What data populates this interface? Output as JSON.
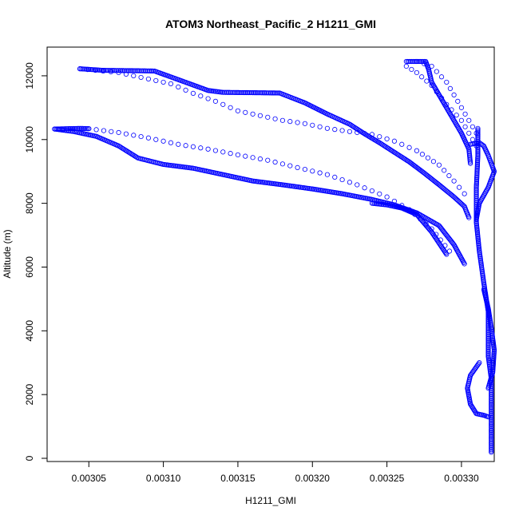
{
  "chart_data": {
    "type": "scatter",
    "title": "ATOM3 Northeast_Pacific_2 H1211_GMI",
    "xlabel": "H1211_GMI",
    "ylabel": "Altitude (m)",
    "xlim": [
      0.003022,
      0.003322
    ],
    "ylim": [
      -100,
      12900
    ],
    "x_ticks": [
      0.00305,
      0.0031,
      0.00315,
      0.0032,
      0.00325,
      0.0033
    ],
    "x_tick_labels": [
      "0.00305",
      "0.00310",
      "0.00315",
      "0.00320",
      "0.00325",
      "0.00330"
    ],
    "y_ticks": [
      0,
      2000,
      4000,
      6000,
      8000,
      10000,
      12000
    ],
    "y_tick_labels": [
      "0",
      "2000",
      "4000",
      "6000",
      "8000",
      "10000",
      "12000"
    ],
    "marker": "open-circle",
    "color": "#0000ff",
    "series": [
      {
        "name": "dense-upper-descent",
        "density": "dense",
        "points": [
          [
            0.003044,
            12220
          ],
          [
            0.00306,
            12170
          ],
          [
            0.00308,
            12160
          ],
          [
            0.003094,
            12150
          ],
          [
            0.00311,
            11880
          ],
          [
            0.00313,
            11540
          ],
          [
            0.00314,
            11480
          ],
          [
            0.00316,
            11470
          ],
          [
            0.003178,
            11460
          ],
          [
            0.003195,
            11150
          ],
          [
            0.00321,
            10800
          ],
          [
            0.003225,
            10480
          ],
          [
            0.003235,
            10180
          ],
          [
            0.003245,
            9900
          ],
          [
            0.003255,
            9600
          ],
          [
            0.003265,
            9300
          ],
          [
            0.003275,
            8950
          ],
          [
            0.003285,
            8580
          ],
          [
            0.003295,
            8200
          ],
          [
            0.003302,
            7900
          ],
          [
            0.003305,
            7550
          ]
        ]
      },
      {
        "name": "sparse-upper-descent",
        "density": "sparse",
        "points": [
          [
            0.003044,
            12220
          ],
          [
            0.00307,
            12100
          ],
          [
            0.00309,
            11900
          ],
          [
            0.003105,
            11750
          ],
          [
            0.00312,
            11450
          ],
          [
            0.003135,
            11200
          ],
          [
            0.00315,
            10900
          ],
          [
            0.003165,
            10750
          ],
          [
            0.00318,
            10600
          ],
          [
            0.003195,
            10500
          ],
          [
            0.00321,
            10350
          ],
          [
            0.003225,
            10250
          ],
          [
            0.00324,
            10160
          ],
          [
            0.003255,
            9950
          ],
          [
            0.00327,
            9650
          ],
          [
            0.003285,
            9200
          ],
          [
            0.003295,
            8700
          ],
          [
            0.003302,
            8300
          ]
        ]
      },
      {
        "name": "dense-left-ascent",
        "density": "dense",
        "points": [
          [
            0.003027,
            10330
          ],
          [
            0.00304,
            10250
          ],
          [
            0.003055,
            10100
          ],
          [
            0.00307,
            9800
          ],
          [
            0.003083,
            9420
          ],
          [
            0.0031,
            9220
          ],
          [
            0.00312,
            9100
          ],
          [
            0.00314,
            8900
          ],
          [
            0.00316,
            8700
          ],
          [
            0.00318,
            8580
          ],
          [
            0.0032,
            8450
          ],
          [
            0.00322,
            8300
          ],
          [
            0.00324,
            8120
          ],
          [
            0.003255,
            7950
          ],
          [
            0.00327,
            7700
          ],
          [
            0.003285,
            7300
          ],
          [
            0.003295,
            6700
          ],
          [
            0.003302,
            6100
          ]
        ]
      },
      {
        "name": "dense-left-branch",
        "density": "dense",
        "points": [
          [
            0.003027,
            10330
          ],
          [
            0.003035,
            10340
          ],
          [
            0.003045,
            10350
          ],
          [
            0.00305,
            10340
          ]
        ]
      },
      {
        "name": "sparse-left-branch",
        "density": "sparse",
        "points": [
          [
            0.00305,
            10340
          ],
          [
            0.00307,
            10220
          ],
          [
            0.00309,
            10050
          ],
          [
            0.00311,
            9850
          ],
          [
            0.00313,
            9700
          ],
          [
            0.00315,
            9520
          ],
          [
            0.00317,
            9350
          ],
          [
            0.00319,
            9120
          ],
          [
            0.00321,
            8900
          ],
          [
            0.00323,
            8580
          ],
          [
            0.00325,
            8200
          ],
          [
            0.003265,
            7800
          ],
          [
            0.00328,
            7200
          ],
          [
            0.003292,
            6500
          ]
        ]
      },
      {
        "name": "dense-mid-branch",
        "density": "dense",
        "points": [
          [
            0.00324,
            8000
          ],
          [
            0.00325,
            7950
          ],
          [
            0.00326,
            7850
          ],
          [
            0.00327,
            7650
          ],
          [
            0.00328,
            7100
          ],
          [
            0.00329,
            6400
          ]
        ]
      },
      {
        "name": "sparse-right-1",
        "density": "sparse",
        "points": [
          [
            0.003263,
            12300
          ],
          [
            0.00327,
            12100
          ],
          [
            0.00328,
            11700
          ],
          [
            0.00329,
            11100
          ],
          [
            0.0033,
            10600
          ],
          [
            0.00331,
            9800
          ]
        ]
      },
      {
        "name": "sparse-right-2",
        "density": "sparse",
        "points": [
          [
            0.00327,
            12450
          ],
          [
            0.00328,
            12300
          ],
          [
            0.00329,
            11800
          ],
          [
            0.0033,
            11000
          ],
          [
            0.00331,
            10200
          ]
        ]
      },
      {
        "name": "dense-top-right",
        "density": "dense",
        "points": [
          [
            0.003263,
            12450
          ],
          [
            0.00327,
            12450
          ],
          [
            0.003276,
            12450
          ],
          [
            0.003278,
            12200
          ],
          [
            0.00328,
            11800
          ],
          [
            0.00329,
            11000
          ],
          [
            0.0033,
            10200
          ],
          [
            0.003305,
            9700
          ],
          [
            0.003306,
            9250
          ]
        ]
      },
      {
        "name": "dense-right-cluster",
        "density": "dense",
        "points": [
          [
            0.003306,
            9850
          ],
          [
            0.003312,
            9900
          ],
          [
            0.003315,
            9800
          ],
          [
            0.003318,
            9500
          ],
          [
            0.003322,
            9000
          ],
          [
            0.003318,
            8500
          ],
          [
            0.003312,
            8000
          ],
          [
            0.00331,
            7500
          ]
        ]
      },
      {
        "name": "dense-vertical-column",
        "density": "dense",
        "points": [
          [
            0.003311,
            10350
          ],
          [
            0.003311,
            9500
          ],
          [
            0.00331,
            8500
          ],
          [
            0.00331,
            7400
          ],
          [
            0.003312,
            6500
          ],
          [
            0.003315,
            5500
          ],
          [
            0.003318,
            4600
          ],
          [
            0.003318,
            3800
          ],
          [
            0.003318,
            3200
          ],
          [
            0.00332,
            2500
          ],
          [
            0.00332,
            1800
          ],
          [
            0.00332,
            1200
          ],
          [
            0.00332,
            600
          ],
          [
            0.00332,
            190
          ]
        ]
      },
      {
        "name": "dense-lower-lobe",
        "density": "dense",
        "points": [
          [
            0.003315,
            5300
          ],
          [
            0.003318,
            4700
          ],
          [
            0.00332,
            4100
          ],
          [
            0.003322,
            3400
          ],
          [
            0.003321,
            2700
          ],
          [
            0.003318,
            2200
          ]
        ]
      },
      {
        "name": "dense-loop",
        "density": "dense",
        "points": [
          [
            0.003312,
            3000
          ],
          [
            0.003306,
            2600
          ],
          [
            0.003304,
            2200
          ],
          [
            0.003306,
            1700
          ],
          [
            0.00331,
            1400
          ],
          [
            0.003315,
            1350
          ],
          [
            0.003318,
            1300
          ]
        ]
      }
    ]
  }
}
